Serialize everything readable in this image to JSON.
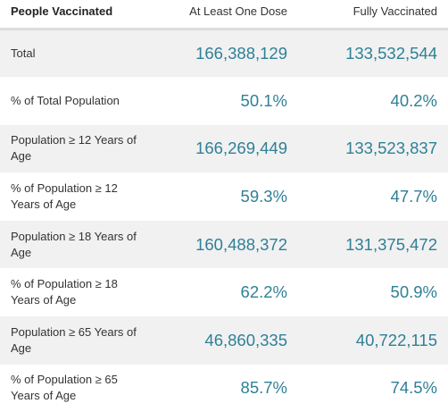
{
  "table": {
    "headers": {
      "label": "People Vaccinated",
      "at_least_one": "At Least One Dose",
      "fully": "Fully Vaccinated"
    },
    "rows": [
      {
        "label": "Total",
        "at_least_one": "166,388,129",
        "fully": "133,532,544"
      },
      {
        "label": "% of Total Population",
        "at_least_one": "50.1%",
        "fully": "40.2%"
      },
      {
        "label": "Population ≥ 12 Years of Age",
        "at_least_one": "166,269,449",
        "fully": "133,523,837"
      },
      {
        "label": "% of Population ≥ 12 Years of Age",
        "at_least_one": "59.3%",
        "fully": "47.7%"
      },
      {
        "label": "Population ≥ 18 Years of Age",
        "at_least_one": "160,488,372",
        "fully": "131,375,472"
      },
      {
        "label": "% of Population ≥ 18 Years of Age",
        "at_least_one": "62.2%",
        "fully": "50.9%"
      },
      {
        "label": "Population ≥ 65 Years of Age",
        "at_least_one": "46,860,335",
        "fully": "40,722,115"
      },
      {
        "label": "% of Population ≥ 65 Years of Age",
        "at_least_one": "85.7%",
        "fully": "74.5%"
      }
    ]
  },
  "colors": {
    "value_text": "#2f8096",
    "stripe": "#f1f1f1"
  }
}
